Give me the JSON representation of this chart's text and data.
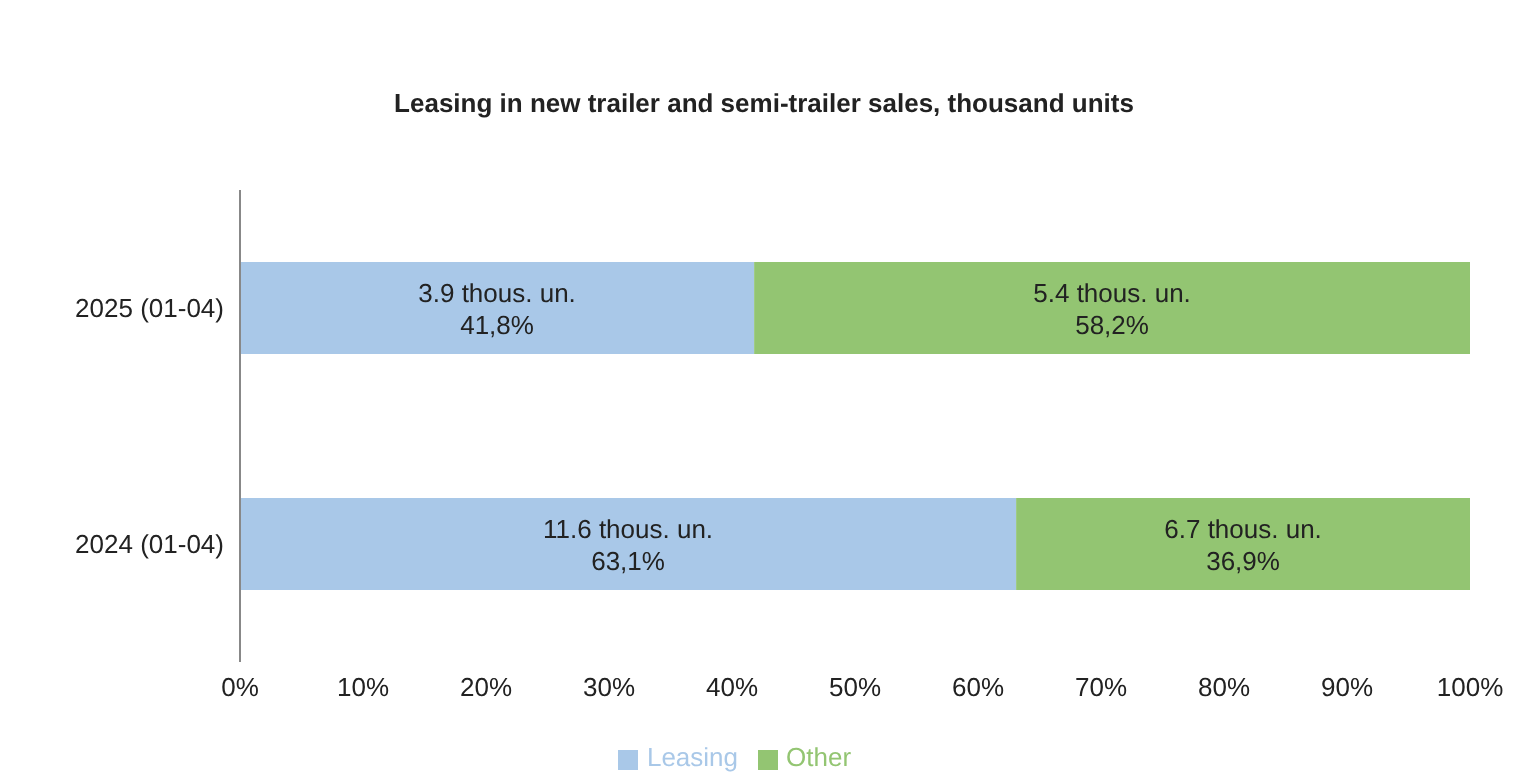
{
  "chart_data": {
    "type": "bar",
    "orientation": "horizontal",
    "stacked": true,
    "title": "Leasing in new trailer and semi-trailer sales, thousand units",
    "categories": [
      "2025 (01-04)",
      "2024 (01-04)"
    ],
    "series": [
      {
        "name": "Leasing",
        "color": "#a9c8e8",
        "values": [
          41.8,
          63.1
        ],
        "value_labels": [
          "3.9 thous. un.\n41,8%",
          "11.6 thous. un.\n63,1%"
        ]
      },
      {
        "name": "Other",
        "color": "#93c572",
        "values": [
          58.2,
          36.9
        ],
        "value_labels": [
          "5.4 thous. un.\n58,2%",
          "6.7 thous. un.\n36,9%"
        ]
      }
    ],
    "xlim": [
      0,
      100
    ],
    "xticks": [
      {
        "value": 0,
        "label": "0%"
      },
      {
        "value": 10,
        "label": "10%"
      },
      {
        "value": 20,
        "label": "20%"
      },
      {
        "value": 30,
        "label": "30%"
      },
      {
        "value": 40,
        "label": "40%"
      },
      {
        "value": 50,
        "label": "50%"
      },
      {
        "value": 60,
        "label": "60%"
      },
      {
        "value": 70,
        "label": "70%"
      },
      {
        "value": 80,
        "label": "80%"
      },
      {
        "value": 90,
        "label": "90%"
      },
      {
        "value": 100,
        "label": "100%"
      }
    ],
    "grid": false,
    "legend": "bottom"
  }
}
